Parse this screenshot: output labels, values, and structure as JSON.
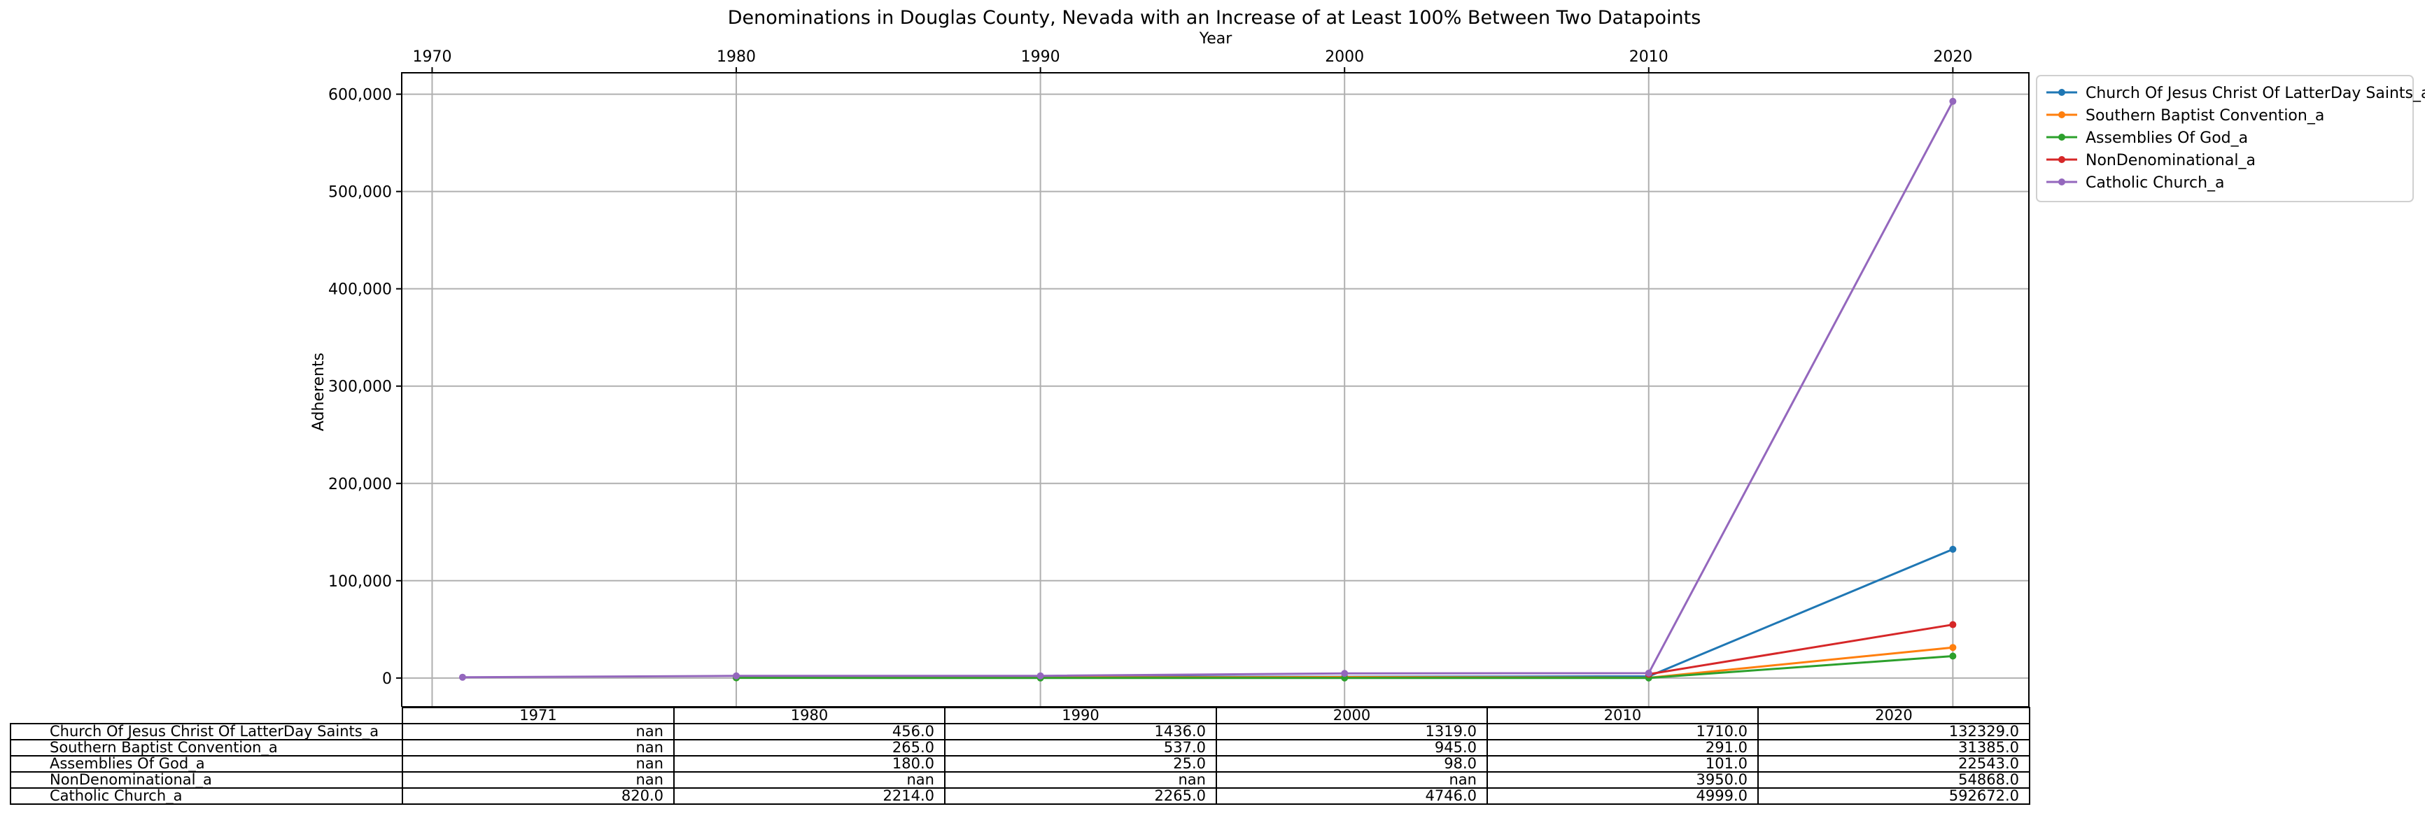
{
  "chart_data": {
    "type": "line",
    "title": "Denominations in Douglas County, Nevada with an Increase of at Least 100% Between Two Datapoints",
    "xlabel": "Year",
    "ylabel": "Adherents",
    "x_ticks": [
      1970,
      1980,
      1990,
      2000,
      2010,
      2020
    ],
    "y_ticks": [
      "0",
      "100,000",
      "200,000",
      "300,000",
      "400,000",
      "500,000",
      "600,000"
    ],
    "y_tick_values": [
      0,
      100000,
      200000,
      300000,
      400000,
      500000,
      600000
    ],
    "xlim": [
      1969,
      2022.5
    ],
    "ylim": [
      -29600,
      622000
    ],
    "grid": true,
    "legend_position": "outside-top-right",
    "x": [
      1971,
      1980,
      1990,
      2000,
      2010,
      2020
    ],
    "series": [
      {
        "name": "Church Of Jesus Christ Of LatterDay Saints_a",
        "color": "#1f77b4",
        "values": [
          null,
          456.0,
          1436.0,
          1319.0,
          1710.0,
          132329.0
        ],
        "table": [
          "nan",
          "456.0",
          "1436.0",
          "1319.0",
          "1710.0",
          "132329.0"
        ]
      },
      {
        "name": "Southern Baptist Convention_a",
        "color": "#ff7f0e",
        "values": [
          null,
          265.0,
          537.0,
          945.0,
          291.0,
          31385.0
        ],
        "table": [
          "nan",
          "265.0",
          "537.0",
          "945.0",
          "291.0",
          "31385.0"
        ]
      },
      {
        "name": "Assemblies Of God_a",
        "color": "#2ca02c",
        "values": [
          null,
          180.0,
          25.0,
          98.0,
          101.0,
          22543.0
        ],
        "table": [
          "nan",
          "180.0",
          "25.0",
          "98.0",
          "101.0",
          "22543.0"
        ]
      },
      {
        "name": "NonDenominational_a",
        "color": "#d62728",
        "values": [
          null,
          null,
          null,
          null,
          3950.0,
          54868.0
        ],
        "table": [
          "nan",
          "nan",
          "nan",
          "nan",
          "3950.0",
          "54868.0"
        ]
      },
      {
        "name": "Catholic Church_a",
        "color": "#9467bd",
        "values": [
          820.0,
          2214.0,
          2265.0,
          4746.0,
          4999.0,
          592672.0
        ],
        "table": [
          "820.0",
          "2214.0",
          "2265.0",
          "4746.0",
          "4999.0",
          "592672.0"
        ]
      }
    ],
    "table_columns": [
      "1971",
      "1980",
      "1990",
      "2000",
      "2010",
      "2020"
    ]
  }
}
